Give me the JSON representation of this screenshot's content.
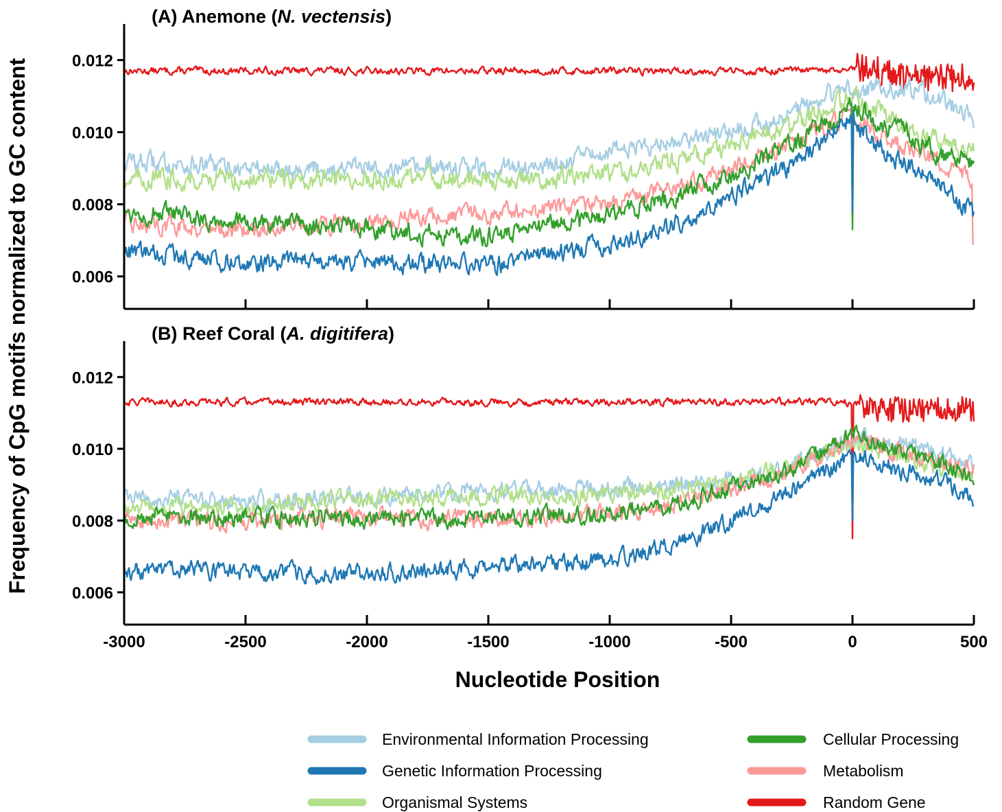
{
  "figure": {
    "ylabel": "Frequency of CpG motifs normalized to GC content",
    "xlabel": "Nucleotide Position"
  },
  "legend": [
    {
      "name": "Environmental Information Processing",
      "color": "#a6cee3"
    },
    {
      "name": "Genetic Information Processing",
      "color": "#1f78b4"
    },
    {
      "name": "Organismal Systems",
      "color": "#b2df8a"
    },
    {
      "name": "Cellular Processing",
      "color": "#33a02c"
    },
    {
      "name": "Metabolism",
      "color": "#fb9a99"
    },
    {
      "name": "Random Gene",
      "color": "#e31a1c"
    }
  ],
  "chart_data": [
    {
      "type": "line",
      "panel": "A",
      "title": {
        "prefix": "(A) Anemone (",
        "species": "N. vectensis",
        "suffix": ")"
      },
      "xlim": [
        -3000,
        500
      ],
      "ylim": [
        0.0051,
        0.013
      ],
      "xticks": [
        -3000,
        -2500,
        -2000,
        -1500,
        -1000,
        -500,
        0,
        500
      ],
      "yticks": [
        "0.006",
        "0.008",
        "0.010",
        "0.012"
      ],
      "x_tick_labels_shown": false,
      "grid": false,
      "series": [
        {
          "name": "Random Gene",
          "color": "#e31a1c",
          "x": [
            -3000,
            -2500,
            -2000,
            -1500,
            -1000,
            -500,
            -150,
            -20,
            0,
            20,
            100,
            200,
            300,
            400,
            500
          ],
          "y": [
            0.0117,
            0.0117,
            0.0117,
            0.0117,
            0.0117,
            0.0117,
            0.0117,
            0.0117,
            0.0117,
            0.0118,
            0.0117,
            0.0115,
            0.0115,
            0.0115,
            0.0115
          ],
          "noise": 8e-05,
          "burst_from": 20,
          "burst_amp": 0.0004
        },
        {
          "name": "Environmental Information Processing",
          "color": "#a6cee3",
          "x": [
            -3000,
            -2500,
            -2000,
            -1500,
            -1200,
            -1000,
            -800,
            -500,
            -250,
            -100,
            -20,
            0,
            100,
            250,
            400,
            500
          ],
          "y": [
            0.0092,
            0.009,
            0.009,
            0.009,
            0.0091,
            0.0095,
            0.0097,
            0.01,
            0.0105,
            0.011,
            0.0112,
            0.011,
            0.0113,
            0.0112,
            0.0108,
            0.0104
          ],
          "noise": 0.00022
        },
        {
          "name": "Organismal Systems",
          "color": "#b2df8a",
          "x": [
            -3000,
            -2500,
            -2000,
            -1500,
            -1000,
            -700,
            -500,
            -250,
            -100,
            0,
            100,
            250,
            400,
            500
          ],
          "y": [
            0.0087,
            0.0087,
            0.0087,
            0.0087,
            0.0088,
            0.0092,
            0.0096,
            0.0102,
            0.0107,
            0.011,
            0.0106,
            0.01,
            0.0097,
            0.0095
          ],
          "noise": 0.00022
        },
        {
          "name": "Metabolism",
          "color": "#fb9a99",
          "x": [
            -3000,
            -2500,
            -2000,
            -1500,
            -1000,
            -700,
            -500,
            -250,
            0,
            100,
            250,
            400,
            500
          ],
          "y": [
            0.0075,
            0.0073,
            0.0075,
            0.0077,
            0.008,
            0.0085,
            0.009,
            0.0097,
            0.0105,
            0.01,
            0.0095,
            0.009,
            0.0086
          ],
          "noise": 0.0002,
          "dip_at": 0,
          "dip_to": 0.0075,
          "end_to": 0.0069
        },
        {
          "name": "Cellular Processing",
          "color": "#33a02c",
          "x": [
            -3000,
            -2500,
            -2000,
            -1500,
            -1000,
            -700,
            -500,
            -250,
            0,
            100,
            250,
            400,
            500
          ],
          "y": [
            0.0078,
            0.0075,
            0.0073,
            0.0071,
            0.0077,
            0.0083,
            0.0088,
            0.0096,
            0.0107,
            0.0103,
            0.0098,
            0.0093,
            0.0092
          ],
          "noise": 0.00022,
          "dip_at": 0,
          "dip_to": 0.0073
        },
        {
          "name": "Genetic Information Processing",
          "color": "#1f78b4",
          "x": [
            -3000,
            -2500,
            -2000,
            -1500,
            -1000,
            -700,
            -500,
            -250,
            0,
            100,
            250,
            400,
            500
          ],
          "y": [
            0.0067,
            0.0064,
            0.0064,
            0.0063,
            0.0069,
            0.0075,
            0.0082,
            0.0091,
            0.0104,
            0.0096,
            0.009,
            0.0084,
            0.0077
          ],
          "noise": 0.00021,
          "dip_at": 0,
          "dip_to": 0.0078
        }
      ]
    },
    {
      "type": "line",
      "panel": "B",
      "title": {
        "prefix": "(B) Reef Coral (",
        "species": "A. digitifera",
        "suffix": ")"
      },
      "xlim": [
        -3000,
        500
      ],
      "ylim": [
        0.0051,
        0.013
      ],
      "xticks": [
        -3000,
        -2500,
        -2000,
        -1500,
        -1000,
        -500,
        0,
        500
      ],
      "x_tick_labels": [
        "-3000",
        "-2500",
        "-2000",
        "-1500",
        "-1000",
        "-500",
        "0",
        "500"
      ],
      "yticks": [
        "0.006",
        "0.008",
        "0.010",
        "0.012"
      ],
      "x_tick_labels_shown": true,
      "grid": false,
      "series": [
        {
          "name": "Random Gene",
          "color": "#e31a1c",
          "x": [
            -3000,
            -2500,
            -2000,
            -1500,
            -1000,
            -500,
            -150,
            -20,
            0,
            20,
            100,
            200,
            300,
            400,
            500
          ],
          "y": [
            0.0113,
            0.0113,
            0.0113,
            0.0113,
            0.0113,
            0.0113,
            0.0113,
            0.0113,
            0.0113,
            0.0112,
            0.0111,
            0.0111,
            0.0111,
            0.0111,
            0.0111
          ],
          "noise": 8e-05,
          "burst_from": 20,
          "burst_amp": 0.00035,
          "dip_at": 0,
          "dip_to": 0.0075
        },
        {
          "name": "Environmental Information Processing",
          "color": "#a6cee3",
          "x": [
            -3000,
            -2500,
            -2000,
            -1500,
            -1000,
            -700,
            -500,
            -250,
            0,
            100,
            250,
            400,
            500
          ],
          "y": [
            0.0086,
            0.0085,
            0.0087,
            0.0088,
            0.0089,
            0.009,
            0.0091,
            0.0095,
            0.0103,
            0.0102,
            0.01,
            0.0098,
            0.0095
          ],
          "noise": 0.0002
        },
        {
          "name": "Organismal Systems",
          "color": "#b2df8a",
          "x": [
            -3000,
            -2500,
            -2000,
            -1500,
            -1000,
            -700,
            -500,
            -250,
            0,
            100,
            250,
            400,
            500
          ],
          "y": [
            0.0083,
            0.0084,
            0.0086,
            0.0087,
            0.0087,
            0.0089,
            0.0091,
            0.0095,
            0.0101,
            0.01,
            0.0097,
            0.0094,
            0.0092
          ],
          "noise": 0.0002
        },
        {
          "name": "Metabolism",
          "color": "#fb9a99",
          "x": [
            -3000,
            -2500,
            -2000,
            -1500,
            -1000,
            -700,
            -500,
            -250,
            0,
            100,
            250,
            400,
            500
          ],
          "y": [
            0.008,
            0.008,
            0.0081,
            0.008,
            0.0082,
            0.0085,
            0.0089,
            0.0094,
            0.0103,
            0.0101,
            0.0098,
            0.0096,
            0.0094
          ],
          "noise": 0.0002
        },
        {
          "name": "Cellular Processing",
          "color": "#33a02c",
          "x": [
            -3000,
            -2500,
            -2000,
            -1500,
            -1000,
            -700,
            -500,
            -250,
            0,
            100,
            250,
            400,
            500
          ],
          "y": [
            0.0081,
            0.0081,
            0.008,
            0.0081,
            0.0082,
            0.0085,
            0.0089,
            0.0094,
            0.0104,
            0.0101,
            0.0098,
            0.0095,
            0.0092
          ],
          "noise": 0.0002
        },
        {
          "name": "Genetic Information Processing",
          "color": "#1f78b4",
          "x": [
            -3000,
            -2500,
            -2000,
            -1500,
            -1000,
            -700,
            -500,
            -250,
            0,
            100,
            250,
            400,
            500
          ],
          "y": [
            0.0066,
            0.0066,
            0.0065,
            0.0067,
            0.0069,
            0.0074,
            0.008,
            0.0088,
            0.0098,
            0.0096,
            0.0093,
            0.009,
            0.0086
          ],
          "noise": 0.0002,
          "dip_at": 0,
          "dip_to": 0.008
        }
      ]
    }
  ]
}
